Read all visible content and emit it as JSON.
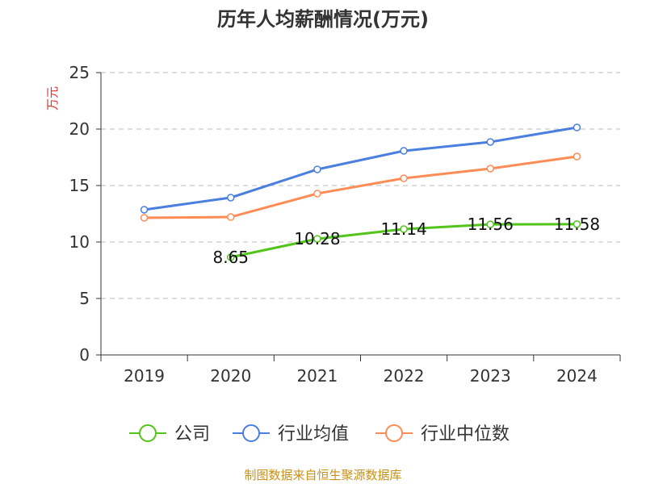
{
  "chart_data": {
    "type": "line",
    "title": "历年人均薪酬情况(万元)",
    "ylabel": "万元",
    "xlabel": "",
    "categories": [
      "2019",
      "2020",
      "2021",
      "2022",
      "2023",
      "2024"
    ],
    "ylim": [
      0,
      25
    ],
    "yticks": [
      0,
      5,
      10,
      15,
      20,
      25
    ],
    "grid": true,
    "legend_position": "bottom",
    "series": [
      {
        "name": "公司",
        "color": "#52c41a",
        "values": [
          null,
          8.65,
          10.28,
          11.14,
          11.56,
          11.58
        ],
        "labels": [
          "",
          "8.65",
          "10.28",
          "11.14",
          "11.56",
          "11.58"
        ]
      },
      {
        "name": "行业均值",
        "color": "#4a7fe0",
        "values": [
          12.86,
          13.93,
          16.43,
          18.07,
          18.86,
          20.14
        ]
      },
      {
        "name": "行业中位数",
        "color": "#ff8c55",
        "values": [
          12.14,
          12.21,
          14.29,
          15.64,
          16.5,
          17.57
        ]
      }
    ]
  },
  "footer": {
    "source": "制图数据来自恒生聚源数据库",
    "color": "#c8901a"
  }
}
